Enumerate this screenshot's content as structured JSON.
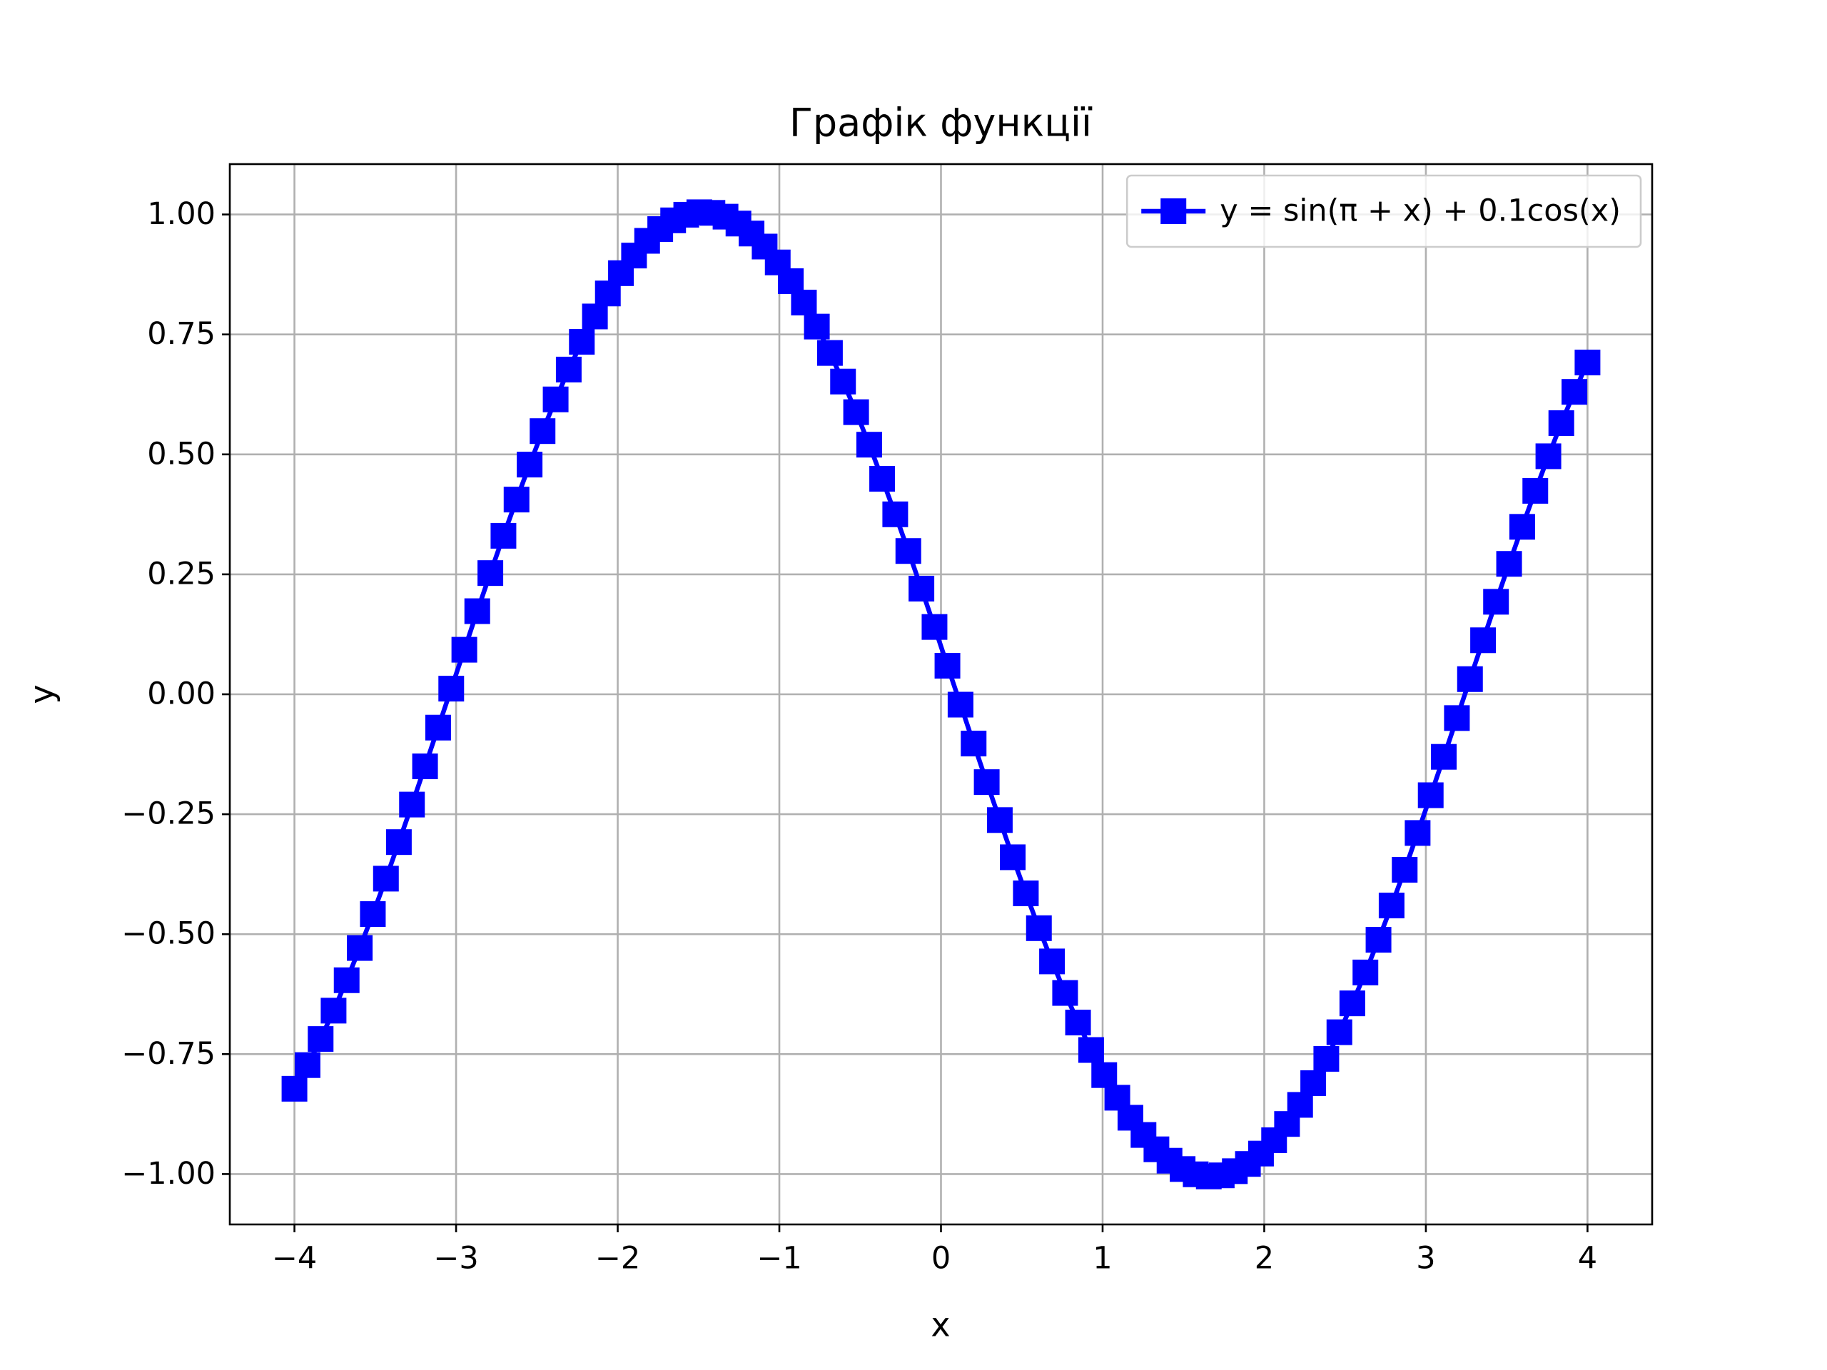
{
  "chart_data": {
    "type": "line",
    "title": "Графік функції",
    "x_label": "x",
    "y_label": "y",
    "x": [
      -4.0,
      -3.919,
      -3.838,
      -3.758,
      -3.677,
      -3.596,
      -3.515,
      -3.434,
      -3.354,
      -3.273,
      -3.192,
      -3.111,
      -3.03,
      -2.949,
      -2.869,
      -2.788,
      -2.707,
      -2.626,
      -2.545,
      -2.465,
      -2.384,
      -2.303,
      -2.222,
      -2.141,
      -2.061,
      -1.98,
      -1.899,
      -1.818,
      -1.737,
      -1.657,
      -1.576,
      -1.495,
      -1.414,
      -1.333,
      -1.253,
      -1.172,
      -1.091,
      -1.01,
      -0.929,
      -0.848,
      -0.768,
      -0.687,
      -0.606,
      -0.525,
      -0.444,
      -0.364,
      -0.283,
      -0.202,
      -0.121,
      -0.04,
      0.04,
      0.121,
      0.202,
      0.283,
      0.364,
      0.444,
      0.525,
      0.606,
      0.687,
      0.768,
      0.848,
      0.929,
      1.01,
      1.091,
      1.172,
      1.253,
      1.333,
      1.414,
      1.495,
      1.576,
      1.657,
      1.737,
      1.818,
      1.899,
      1.98,
      2.061,
      2.141,
      2.222,
      2.303,
      2.384,
      2.465,
      2.545,
      2.626,
      2.707,
      2.788,
      2.869,
      2.949,
      3.03,
      3.111,
      3.192,
      3.273,
      3.354,
      3.434,
      3.515,
      3.596,
      3.677,
      3.758,
      3.838,
      3.919,
      4.0
    ],
    "series": [
      {
        "name": "y = sin(π + x) + 0.1cos(x)",
        "color": "#0000ff",
        "marker": "square",
        "values": [
          -0.8222,
          -0.7729,
          -0.7185,
          -0.6594,
          -0.596,
          -0.5288,
          -0.4581,
          -0.3843,
          -0.3081,
          -0.2299,
          -0.1502,
          -0.0695,
          0.0117,
          0.0928,
          0.1732,
          0.2526,
          0.3303,
          0.4058,
          0.4787,
          0.5485,
          0.6146,
          0.6768,
          0.7346,
          0.7875,
          0.8354,
          0.8777,
          0.9144,
          0.9451,
          0.9696,
          0.9878,
          0.9995,
          1.0047,
          1.0034,
          0.9955,
          0.9811,
          0.9603,
          0.9332,
          0.9001,
          0.861,
          0.8164,
          0.7664,
          0.7114,
          0.6518,
          0.588,
          0.5202,
          0.4491,
          0.3751,
          0.2986,
          0.2202,
          0.1403,
          0.0595,
          -0.0216,
          -0.1027,
          -0.1831,
          -0.2622,
          -0.3397,
          -0.4149,
          -0.4875,
          -0.5568,
          -0.6225,
          -0.6842,
          -0.7414,
          -0.7937,
          -0.8409,
          -0.8826,
          -0.9185,
          -0.9484,
          -0.9722,
          -0.9895,
          -1.0005,
          -1.0049,
          -1.0027,
          -0.994,
          -0.9789,
          -0.9573,
          -0.9295,
          -0.8956,
          -0.8558,
          -0.8105,
          -0.7599,
          -0.7044,
          -0.6442,
          -0.5798,
          -0.5117,
          -0.4402,
          -0.3658,
          -0.2891,
          -0.2104,
          -0.1304,
          -0.0496,
          0.0316,
          0.1126,
          0.1928,
          0.2718,
          0.349,
          0.424,
          0.4961,
          0.5651,
          0.6303,
          0.6915
        ]
      }
    ],
    "xlim": [
      -4.4,
      4.4
    ],
    "ylim": [
      -1.105,
      1.105
    ],
    "xticks": [
      {
        "value": -4,
        "label": "−4"
      },
      {
        "value": -3,
        "label": "−3"
      },
      {
        "value": -2,
        "label": "−2"
      },
      {
        "value": -1,
        "label": "−1"
      },
      0,
      1,
      2,
      3,
      4
    ],
    "yticks": [
      {
        "value": -1,
        "label": "−1.00"
      },
      {
        "value": -0.75,
        "label": "−0.75"
      },
      {
        "value": -0.5,
        "label": "−0.50"
      },
      {
        "value": -0.25,
        "label": "−0.25"
      },
      {
        "value": 0,
        "label": "0.00"
      },
      {
        "value": 0.25,
        "label": "0.25"
      },
      {
        "value": 0.5,
        "label": "0.50"
      },
      {
        "value": 0.75,
        "label": "0.75"
      },
      {
        "value": 1,
        "label": "1.00"
      }
    ],
    "grid": true,
    "legend": "upper right"
  }
}
